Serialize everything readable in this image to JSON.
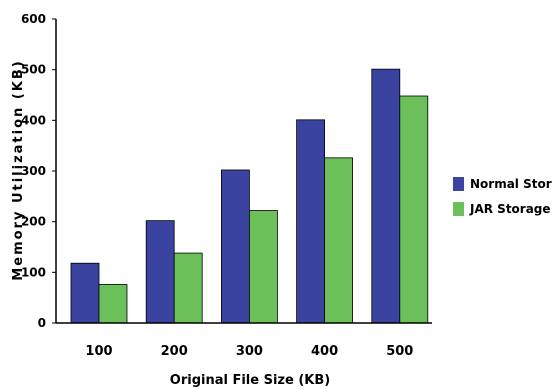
{
  "chart_data": {
    "type": "bar",
    "categories": [
      "100",
      "200",
      "300",
      "400",
      "500"
    ],
    "series": [
      {
        "name": "Normal Storage",
        "color": "#3a43a0",
        "values": [
          118,
          202,
          302,
          401,
          501
        ]
      },
      {
        "name": "JAR Storage",
        "color": "#6cc05a",
        "values": [
          76,
          138,
          222,
          326,
          448
        ]
      }
    ],
    "xlabel": "Original File Size (KB)",
    "ylabel": "Memory Utilization (KB)",
    "ylim": [
      0,
      600
    ],
    "yticks": [
      0,
      100,
      200,
      300,
      400,
      500,
      600
    ],
    "grid": false,
    "legend_position": "right"
  }
}
